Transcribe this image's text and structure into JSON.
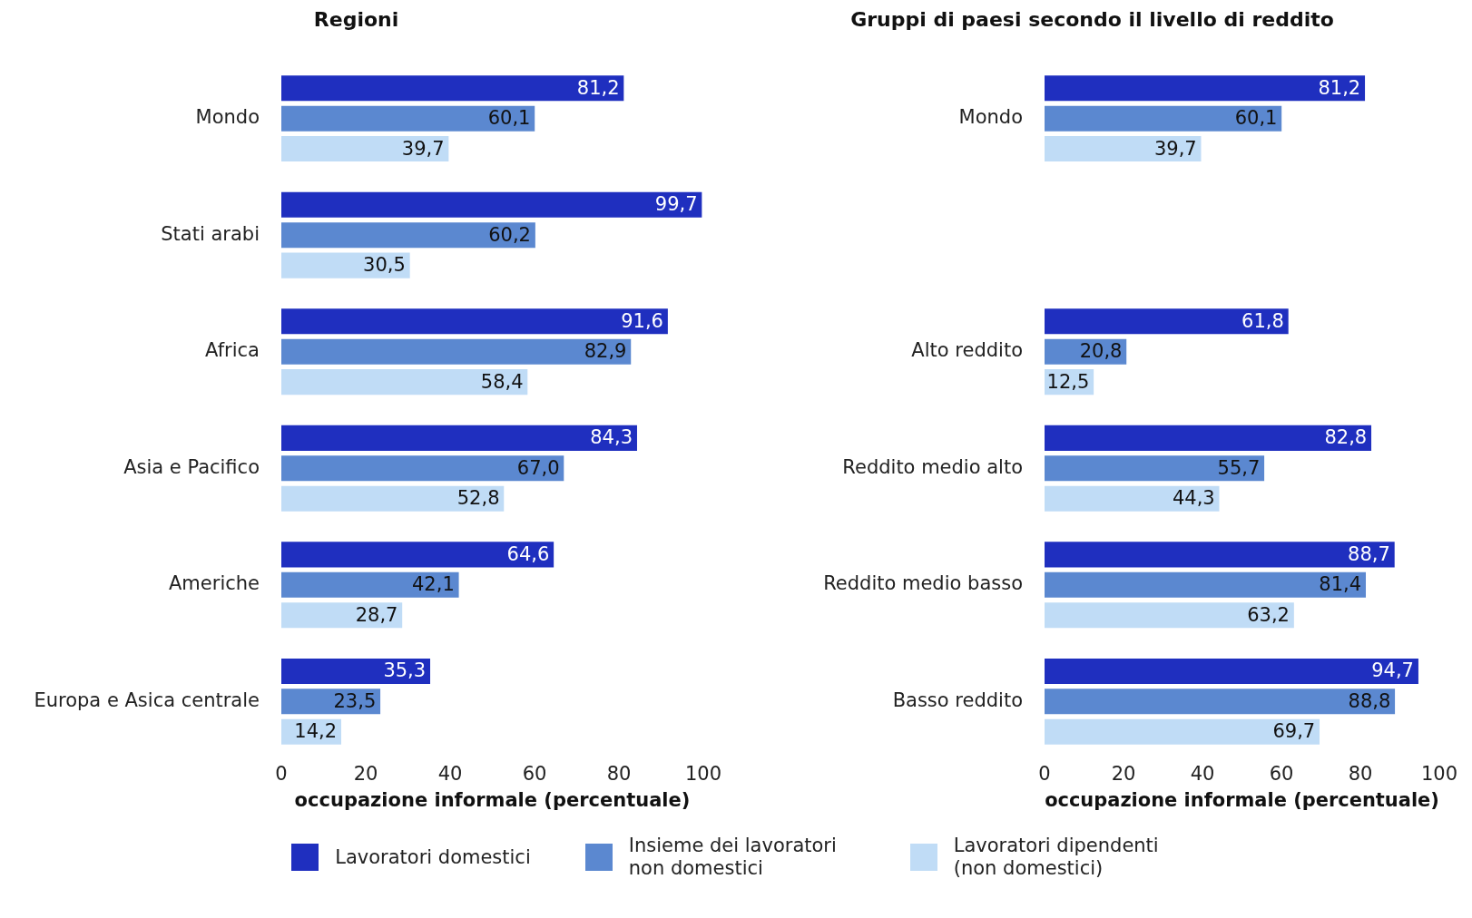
{
  "chart_data": [
    {
      "type": "bar",
      "orientation": "horizontal",
      "title": "Regioni",
      "xlabel": "occupazione informale (percentuale)",
      "categories": [
        "Mondo",
        "Stati arabi",
        "Africa",
        "Asia e Pacifico",
        "Americhe",
        "Europa e Asica centrale"
      ],
      "xlim": [
        0,
        100
      ],
      "xticks": [
        0,
        20,
        40,
        60,
        80,
        100
      ],
      "grid": false,
      "legend": "bottom",
      "series": [
        {
          "name": "Lavoratori domestici",
          "color": "#1f2fbf",
          "values": [
            81.2,
            99.7,
            91.6,
            84.3,
            64.6,
            35.3
          ],
          "value_labels": [
            "81,2",
            "99,7",
            "91,6",
            "84,3",
            "64,6",
            "35,3"
          ]
        },
        {
          "name": "Insieme dei lavoratori non domestici",
          "color": "#5b88d0",
          "values": [
            60.1,
            60.2,
            82.9,
            67.0,
            42.1,
            23.5
          ],
          "value_labels": [
            "60,1",
            "60,2",
            "82,9",
            "67,0",
            "42,1",
            "23,5"
          ]
        },
        {
          "name": "Lavoratori dipendenti (non domestici)",
          "color": "#c0dcf6",
          "values": [
            39.7,
            30.5,
            58.4,
            52.8,
            28.7,
            14.2
          ],
          "value_labels": [
            "39,7",
            "30,5",
            "58,4",
            "52,8",
            "28,7",
            "14,2"
          ]
        }
      ]
    },
    {
      "type": "bar",
      "orientation": "horizontal",
      "title": "Gruppi di paesi secondo il livello di reddito",
      "xlabel": "occupazione informale (percentuale)",
      "categories": [
        "Mondo",
        null,
        "Alto reddito",
        "Reddito medio alto",
        "Reddito medio basso",
        "Basso reddito"
      ],
      "xlim": [
        0,
        100
      ],
      "xticks": [
        0,
        20,
        40,
        60,
        80,
        100
      ],
      "grid": false,
      "series": [
        {
          "color": "#1f2fbf",
          "values": [
            81.2,
            null,
            61.8,
            82.8,
            88.7,
            94.7
          ],
          "value_labels": [
            "81,2",
            null,
            "61,8",
            "82,8",
            "88,7",
            "94,7"
          ]
        },
        {
          "color": "#5b88d0",
          "values": [
            60.1,
            null,
            20.8,
            55.7,
            81.4,
            88.8
          ],
          "value_labels": [
            "60,1",
            null,
            "20,8",
            "55,7",
            "81,4",
            "88,8"
          ]
        },
        {
          "color": "#c0dcf6",
          "values": [
            39.7,
            null,
            12.5,
            44.3,
            63.2,
            69.7
          ],
          "value_labels": [
            "39,7",
            null,
            "12,5",
            "44,3",
            "63,2",
            "69,7"
          ]
        }
      ]
    }
  ]
}
